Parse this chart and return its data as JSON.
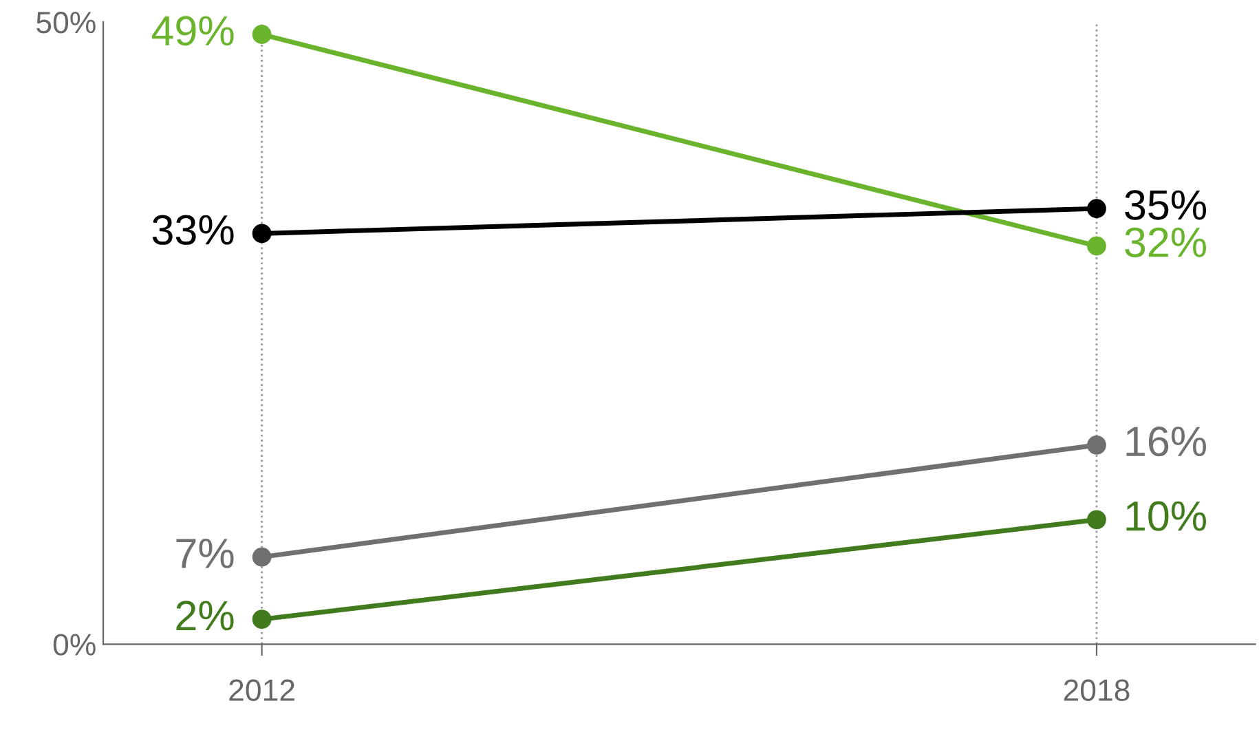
{
  "chart_data": {
    "type": "line",
    "categories": [
      "2012",
      "2018"
    ],
    "series": [
      {
        "color": "#6ab42d",
        "values": [
          49,
          32
        ],
        "value_labels": [
          "49%",
          "32%"
        ]
      },
      {
        "color": "#000000",
        "values": [
          33,
          35
        ],
        "value_labels": [
          "33%",
          "35%"
        ]
      },
      {
        "color": "#707070",
        "values": [
          7,
          16
        ],
        "value_labels": [
          "7%",
          "16%"
        ]
      },
      {
        "color": "#417b1e",
        "values": [
          2,
          10
        ],
        "value_labels": [
          "2%",
          "10%"
        ]
      }
    ],
    "ylim": [
      0,
      50
    ],
    "yticks": [
      {
        "value": 0,
        "label": "0%"
      },
      {
        "value": 50,
        "label": "50%"
      }
    ],
    "grid": "x",
    "marker": "circle",
    "line_style": "solid",
    "legend": false
  }
}
